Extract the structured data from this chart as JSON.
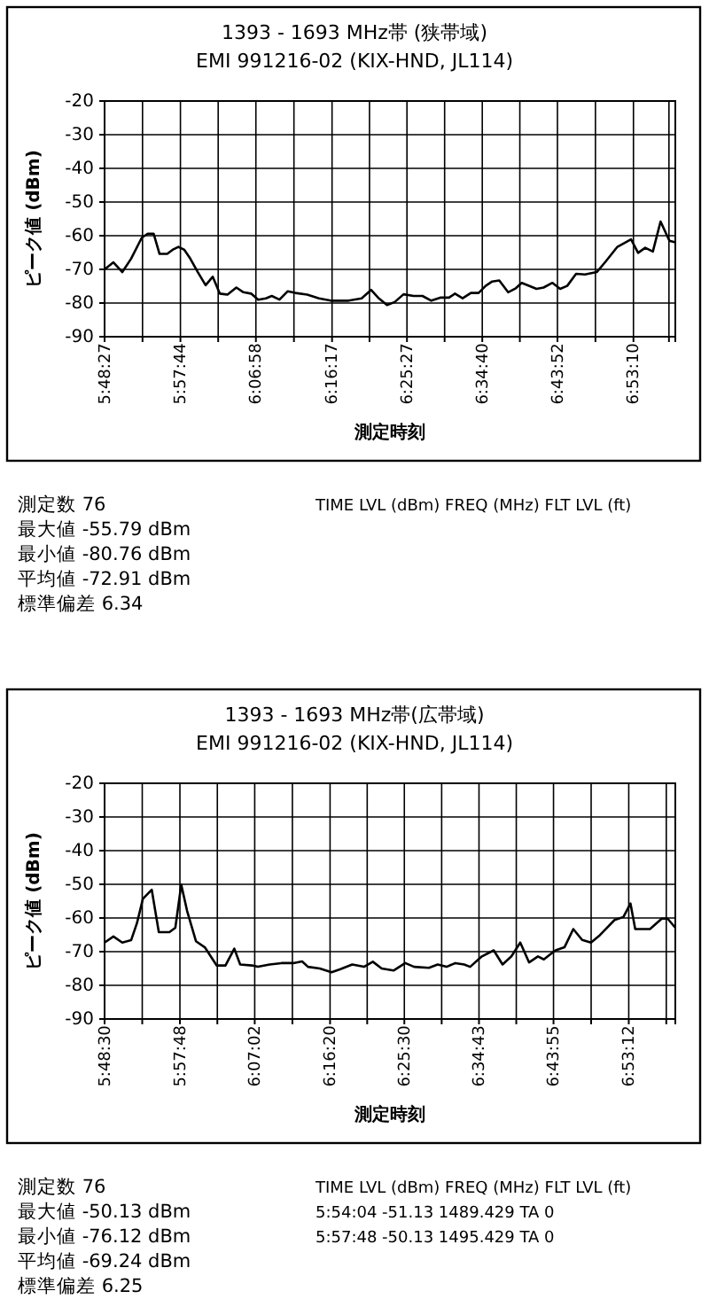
{
  "chart_data": [
    {
      "type": "line",
      "title": "1393 - 1693 MHz帯 (狭帯域)",
      "subtitle": "EMI 991216-02 (KIX-HND, JL114)",
      "xlabel": "測定時刻",
      "ylabel": "ピーク値 (dBm)",
      "grid": true,
      "marker": "none",
      "line_style": "solid",
      "xlim": [
        5.8075,
        6.9715
      ],
      "ylim": [
        -90,
        -20
      ],
      "yticks": [
        -90,
        -80,
        -70,
        -60,
        -50,
        -40,
        -30,
        -20
      ],
      "xticks": [
        {
          "value": 5.8075,
          "label": "5:48:27"
        },
        {
          "value": 5.8849,
          "label": null
        },
        {
          "value": 5.9622,
          "label": "5:57:44"
        },
        {
          "value": 6.0392,
          "label": null
        },
        {
          "value": 6.1161,
          "label": "6:06:58"
        },
        {
          "value": 6.1937,
          "label": null
        },
        {
          "value": 6.2714,
          "label": "6:16:17"
        },
        {
          "value": 6.3478,
          "label": null
        },
        {
          "value": 6.4242,
          "label": "6:25:27"
        },
        {
          "value": 6.501,
          "label": null
        },
        {
          "value": 6.5778,
          "label": "6:34:40"
        },
        {
          "value": 6.6544,
          "label": null
        },
        {
          "value": 6.7311,
          "label": "6:43:52"
        },
        {
          "value": 6.8086,
          "label": null
        },
        {
          "value": 6.8861,
          "label": "6:53:10"
        },
        {
          "value": 6.9585,
          "label": null
        }
      ],
      "series": [
        {
          "color": "#000000",
          "x": [
            5.8075,
            5.8256,
            5.8437,
            5.8617,
            5.8834,
            5.8955,
            5.9075,
            5.9196,
            5.9352,
            5.9461,
            5.9581,
            5.9702,
            5.9822,
            5.9979,
            6.0136,
            6.028,
            6.0425,
            6.0581,
            6.0762,
            6.0907,
            6.1063,
            6.1208,
            6.1365,
            6.1485,
            6.1642,
            6.1811,
            6.1967,
            6.2208,
            6.2449,
            6.269,
            6.3052,
            6.3317,
            6.351,
            6.3654,
            6.3835,
            6.3992,
            6.4172,
            6.4377,
            6.4558,
            6.4739,
            6.4919,
            6.51,
            6.5221,
            6.5377,
            6.5546,
            6.5703,
            6.5847,
            6.598,
            6.6124,
            6.6305,
            6.6462,
            6.6582,
            6.6751,
            6.6884,
            6.7028,
            6.7209,
            6.7366,
            6.751,
            6.7691,
            6.7872,
            6.8113,
            6.8293,
            6.8534,
            6.8812,
            6.8956,
            6.9101,
            6.9257,
            6.9414,
            6.9595,
            6.9715
          ],
          "values": [
            -70.0,
            -67.9,
            -70.8,
            -66.8,
            -60.6,
            -59.4,
            -59.4,
            -65.4,
            -65.4,
            -64.2,
            -63.3,
            -64.2,
            -66.8,
            -70.9,
            -74.7,
            -72.2,
            -77.2,
            -77.5,
            -75.4,
            -76.8,
            -77.2,
            -79.0,
            -78.6,
            -77.9,
            -79.0,
            -76.5,
            -77.0,
            -77.5,
            -78.6,
            -79.3,
            -79.3,
            -78.6,
            -76.1,
            -78.4,
            -80.6,
            -79.7,
            -77.4,
            -77.9,
            -77.9,
            -79.3,
            -78.4,
            -78.4,
            -77.2,
            -78.6,
            -77.0,
            -77.0,
            -74.9,
            -73.6,
            -73.3,
            -76.8,
            -75.6,
            -74.0,
            -75.0,
            -75.8,
            -75.4,
            -74.0,
            -75.8,
            -74.9,
            -71.3,
            -71.5,
            -70.8,
            -67.7,
            -63.3,
            -61.1,
            -65.1,
            -63.6,
            -64.7,
            -55.8,
            -61.5,
            -62.0
          ]
        }
      ],
      "annotations": [
        "測定数 76",
        "最大値 -55.79 dBm",
        "最小値 -80.76 dBm",
        "平均値 -72.91 dBm",
        "標準偏差 6.34",
        "TIME LVL (dBm) FREQ (MHz) FLT LVL (ft)"
      ]
    },
    {
      "type": "line",
      "title": "1393 - 1693 MHz帯(広帯域)",
      "subtitle": "EMI 991216-02 (KIX-HND, JL114)",
      "xlabel": "測定時刻",
      "ylabel": "ピーク値 (dBm)",
      "grid": true,
      "marker": "none",
      "line_style": "solid",
      "xlim": [
        5.8083,
        6.9825
      ],
      "ylim": [
        -90,
        -20
      ],
      "yticks": [
        -90,
        -80,
        -70,
        -60,
        -50,
        -40,
        -30,
        -20
      ],
      "xticks": [
        {
          "value": 5.8083,
          "label": "5:48:30"
        },
        {
          "value": 5.8858,
          "label": null
        },
        {
          "value": 5.9633,
          "label": "5:57:48"
        },
        {
          "value": 6.0403,
          "label": null
        },
        {
          "value": 6.1172,
          "label": "6:07:02"
        },
        {
          "value": 6.1947,
          "label": null
        },
        {
          "value": 6.2722,
          "label": "6:16:20"
        },
        {
          "value": 6.3486,
          "label": null
        },
        {
          "value": 6.425,
          "label": "6:25:30"
        },
        {
          "value": 6.5018,
          "label": null
        },
        {
          "value": 6.5786,
          "label": "6:34:43"
        },
        {
          "value": 6.6553,
          "label": null
        },
        {
          "value": 6.7319,
          "label": "6:43:55"
        },
        {
          "value": 6.8093,
          "label": null
        },
        {
          "value": 6.8867,
          "label": "6:53:12"
        },
        {
          "value": 6.9639,
          "label": null
        }
      ],
      "series": [
        {
          "color": "#000000",
          "x": [
            5.8083,
            5.8265,
            5.8447,
            5.8629,
            5.875,
            5.8871,
            5.9053,
            5.9199,
            5.9417,
            5.9539,
            5.966,
            5.9781,
            5.9963,
            6.0145,
            6.0388,
            6.057,
            6.0752,
            6.0873,
            6.1116,
            6.1237,
            6.1479,
            6.1722,
            6.1965,
            6.2147,
            6.2268,
            6.251,
            6.2753,
            6.2935,
            6.3178,
            6.342,
            6.3602,
            6.3784,
            6.4027,
            6.4269,
            6.4451,
            6.4755,
            6.4936,
            6.5118,
            6.53,
            6.5482,
            6.5604,
            6.5846,
            6.6089,
            6.6271,
            6.6453,
            6.6635,
            6.6817,
            6.6999,
            6.712,
            6.7241,
            6.7362,
            6.7544,
            6.7726,
            6.7908,
            6.809,
            6.8272,
            6.8575,
            6.8757,
            6.8903,
            6.9,
            6.9303,
            6.9546,
            6.9667,
            6.9825
          ],
          "values": [
            -67.3,
            -65.5,
            -67.3,
            -66.6,
            -61.5,
            -54.3,
            -51.6,
            -64.2,
            -64.2,
            -62.9,
            -50.1,
            -57.9,
            -66.9,
            -68.7,
            -74.1,
            -74.1,
            -69.1,
            -73.8,
            -74.1,
            -74.5,
            -73.8,
            -73.4,
            -73.4,
            -72.9,
            -74.5,
            -75.0,
            -76.1,
            -75.2,
            -73.8,
            -74.5,
            -73.0,
            -75.0,
            -75.6,
            -73.4,
            -74.5,
            -74.8,
            -73.8,
            -74.5,
            -73.4,
            -73.8,
            -74.5,
            -71.4,
            -69.6,
            -73.8,
            -71.4,
            -67.3,
            -73.2,
            -71.4,
            -72.3,
            -70.9,
            -69.6,
            -68.7,
            -63.3,
            -66.5,
            -67.3,
            -65.1,
            -60.6,
            -59.7,
            -55.7,
            -63.3,
            -63.3,
            -60.2,
            -60.2,
            -62.9
          ]
        }
      ],
      "annotations": [
        "測定数 76",
        "最大値 -50.13 dBm",
        "最小値 -76.12 dBm",
        "平均値 -69.24 dBm",
        "標準偏差 6.25",
        "TIME LVL (dBm) FREQ (MHz) FLT LVL (ft)",
        "5:54:04 -51.13 1489.429 TA 0",
        "5:57:48 -50.13 1495.429 TA 0"
      ]
    }
  ]
}
